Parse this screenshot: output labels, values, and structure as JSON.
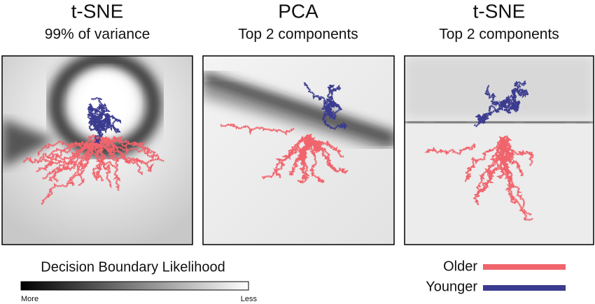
{
  "panels": [
    {
      "title": "t-SNE",
      "subtitle": "99% of variance"
    },
    {
      "title": "PCA",
      "subtitle": "Top 2 components"
    },
    {
      "title": "t-SNE",
      "subtitle": "Top 2 components"
    }
  ],
  "colorbar": {
    "title": "Decision Boundary Likelihood",
    "low_label": "More",
    "high_label": "Less"
  },
  "legend": [
    {
      "name": "Older",
      "color": "#f0646c"
    },
    {
      "name": "Younger",
      "color": "#3b3b8f"
    }
  ]
}
